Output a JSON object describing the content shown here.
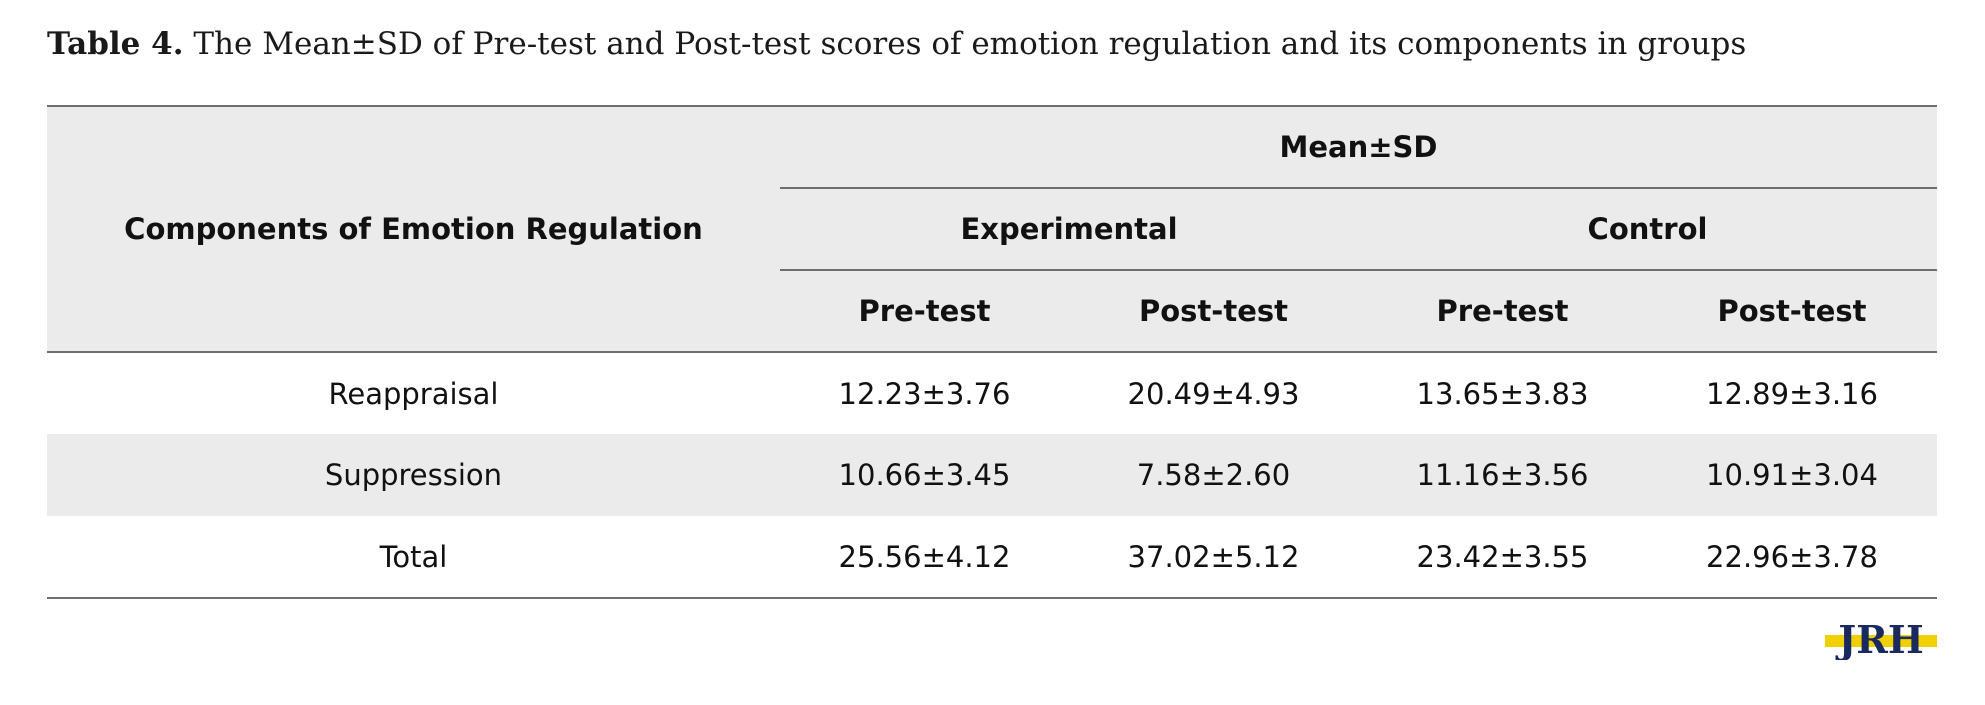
{
  "caption": {
    "label": "Table 4.",
    "text": " The Mean±SD of Pre-test and Post-test scores of emotion regulation and its components in groups"
  },
  "table": {
    "component_header": "Components of Emotion Regulation",
    "meansd_header": "Mean±SD",
    "groups": [
      "Experimental",
      "Control"
    ],
    "subheaders": [
      "Pre-test",
      "Post-test",
      "Pre-test",
      "Post-test"
    ],
    "rows": [
      {
        "name": "Reappraisal",
        "values": [
          "12.23±3.76",
          "20.49±4.93",
          "13.65±3.83",
          "12.89±3.16"
        ]
      },
      {
        "name": "Suppression",
        "values": [
          "10.66±3.45",
          "7.58±2.60",
          "11.16±3.56",
          "10.91±3.04"
        ]
      },
      {
        "name": "Total",
        "values": [
          "25.56±4.12",
          "37.02±5.12",
          "23.42±3.55",
          "22.96±3.78"
        ]
      }
    ]
  },
  "logo": {
    "text": "JRH",
    "colors": {
      "letters": "#1b2a5e",
      "stripe": "#f0d000"
    }
  }
}
